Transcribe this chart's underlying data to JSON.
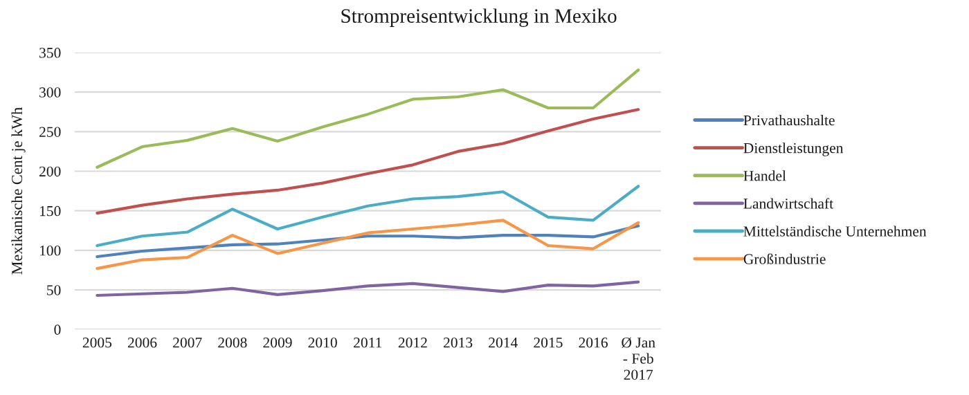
{
  "chart_data": {
    "type": "line",
    "title": "Strompreisentwicklung in Mexiko",
    "ylabel": "Mexikanische Cent je kWh",
    "categories": [
      "2005",
      "2006",
      "2007",
      "2008",
      "2009",
      "2010",
      "2011",
      "2012",
      "2013",
      "2014",
      "2015",
      "2016",
      "Ø Jan - Feb 2017"
    ],
    "series": [
      {
        "name": "Privathaushalte",
        "color": "#4f81bd",
        "values": [
          92,
          99,
          103,
          107,
          108,
          113,
          118,
          118,
          116,
          119,
          119,
          117,
          131
        ]
      },
      {
        "name": "Dienstleistungen",
        "color": "#c0504d",
        "values": [
          147,
          157,
          165,
          171,
          176,
          185,
          197,
          208,
          225,
          235,
          251,
          266,
          278
        ]
      },
      {
        "name": "Handel",
        "color": "#9bbb59",
        "values": [
          205,
          231,
          239,
          254,
          238,
          256,
          272,
          291,
          294,
          303,
          280,
          280,
          328
        ]
      },
      {
        "name": "Landwirtschaft",
        "color": "#8064a2",
        "values": [
          43,
          45,
          47,
          52,
          44,
          49,
          55,
          58,
          53,
          48,
          56,
          55,
          60
        ]
      },
      {
        "name": "Mittelständische Unternehmen",
        "color": "#4bacc6",
        "values": [
          106,
          118,
          123,
          152,
          127,
          142,
          156,
          165,
          168,
          174,
          142,
          138,
          181
        ]
      },
      {
        "name": "Großindustrie",
        "color": "#f79646",
        "values": [
          77,
          88,
          91,
          119,
          96,
          109,
          122,
          127,
          132,
          138,
          106,
          102,
          135
        ]
      }
    ],
    "ylim": [
      0,
      350
    ],
    "yticks": [
      0,
      50,
      100,
      150,
      200,
      250,
      300,
      350
    ],
    "grid": "y",
    "legend": "right"
  }
}
